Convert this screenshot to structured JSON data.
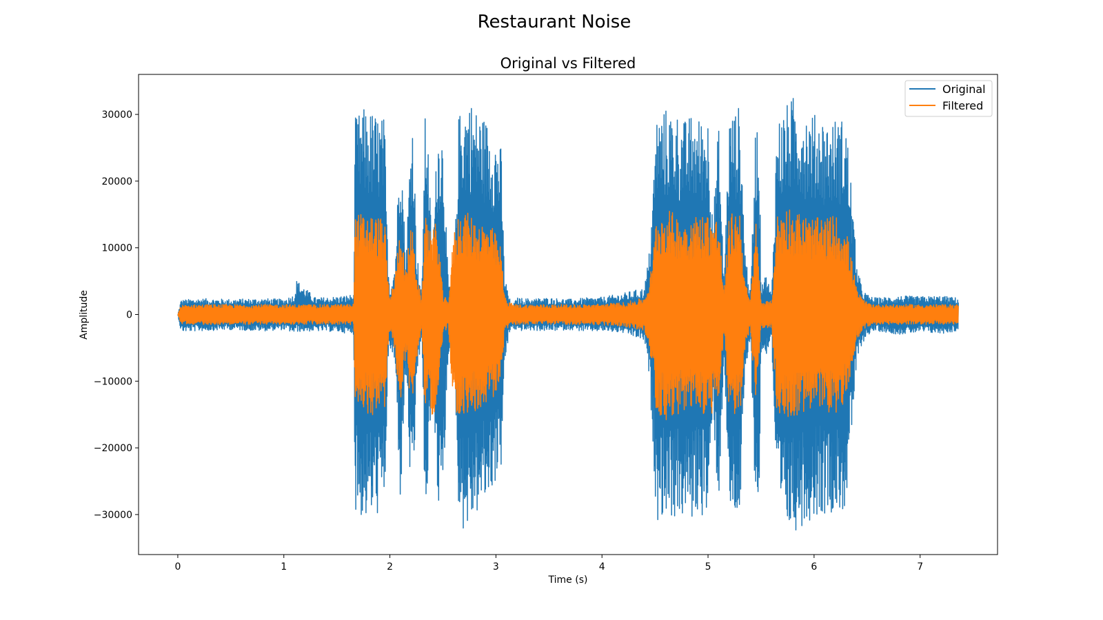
{
  "figure": {
    "suptitle": "Restaurant Noise"
  },
  "chart_data": {
    "type": "line",
    "title": "Original vs Filtered",
    "xlabel": "Time (s)",
    "ylabel": "Amplitude",
    "xlim": [
      -0.37,
      7.73
    ],
    "ylim": [
      -36000,
      36000
    ],
    "xticks": [
      0,
      1,
      2,
      3,
      4,
      5,
      6,
      7
    ],
    "xtick_labels": [
      "0",
      "1",
      "2",
      "3",
      "4",
      "5",
      "6",
      "7"
    ],
    "yticks": [
      -30000,
      -20000,
      -10000,
      0,
      10000,
      20000,
      30000
    ],
    "ytick_labels": [
      "−30000",
      "−20000",
      "−10000",
      "0",
      "10000",
      "20000",
      "30000"
    ],
    "grid": false,
    "legend": {
      "position": "upper right",
      "entries": [
        {
          "label": "Original",
          "color": "#1f77b4"
        },
        {
          "label": "Filtered",
          "color": "#ff7f0e"
        }
      ]
    },
    "series": [
      {
        "name": "Original",
        "color": "#1f77b4",
        "envelope": {
          "x": [
            0.0,
            0.03,
            0.2,
            0.5,
            0.8,
            1.0,
            1.1,
            1.12,
            1.3,
            1.5,
            1.66,
            1.67,
            1.75,
            1.85,
            1.95,
            1.98,
            2.0,
            2.05,
            2.1,
            2.15,
            2.2,
            2.22,
            2.25,
            2.3,
            2.33,
            2.35,
            2.4,
            2.45,
            2.5,
            2.55,
            2.6,
            2.65,
            2.68,
            2.75,
            2.8,
            2.85,
            2.9,
            2.95,
            3.0,
            3.05,
            3.08,
            3.12,
            3.15,
            3.2,
            3.3,
            3.5,
            3.7,
            3.85,
            4.0,
            4.2,
            4.4,
            4.45,
            4.5,
            4.51,
            4.6,
            4.7,
            4.8,
            4.85,
            4.9,
            5.0,
            5.05,
            5.1,
            5.15,
            5.2,
            5.25,
            5.3,
            5.35,
            5.4,
            5.45,
            5.48,
            5.5,
            5.55,
            5.6,
            5.65,
            5.68,
            5.72,
            5.8,
            5.9,
            6.0,
            6.05,
            6.1,
            6.15,
            6.2,
            6.3,
            6.35,
            6.4,
            6.45,
            6.5,
            6.55,
            6.6,
            6.8,
            7.0,
            7.2,
            7.36
          ],
          "max": [
            0,
            2200,
            2400,
            2300,
            2400,
            2300,
            3000,
            5200,
            2500,
            2700,
            3000,
            29500,
            31000,
            30500,
            29500,
            9000,
            4000,
            8000,
            29000,
            8000,
            29000,
            30500,
            10000,
            3000,
            29500,
            30500,
            8000,
            28500,
            27500,
            5000,
            3000,
            30000,
            31500,
            32800,
            31000,
            30500,
            29500,
            28500,
            27000,
            25000,
            6000,
            3000,
            1200,
            2500,
            2400,
            2500,
            2300,
            2500,
            2600,
            3200,
            4000,
            10000,
            25000,
            30000,
            31000,
            30500,
            29000,
            30500,
            29500,
            30000,
            15000,
            29000,
            5000,
            30000,
            30500,
            31500,
            10000,
            3000,
            29500,
            29000,
            5000,
            6000,
            3000,
            29500,
            30000,
            31000,
            32800,
            31500,
            30000,
            30500,
            29500,
            29000,
            29500,
            29500,
            20000,
            8000,
            4000,
            3000,
            2600,
            2500,
            2800,
            2700,
            2800,
            2500
          ],
          "min": [
            0,
            -2600,
            -2500,
            -2300,
            -2500,
            -2300,
            -2800,
            -2600,
            -2500,
            -2600,
            -3000,
            -29500,
            -31000,
            -30500,
            -29500,
            -9000,
            -5000,
            -8000,
            -29000,
            -8000,
            -29000,
            -30500,
            -10000,
            -3500,
            -29500,
            -31000,
            -9000,
            -29000,
            -28500,
            -6000,
            -4000,
            -30000,
            -32500,
            -32000,
            -30500,
            -29500,
            -28500,
            -27000,
            -25000,
            -23000,
            -8000,
            -3500,
            -2000,
            -2500,
            -2400,
            -2500,
            -2300,
            -2600,
            -2500,
            -2800,
            -4000,
            -10000,
            -26000,
            -31000,
            -30000,
            -31000,
            -30500,
            -31000,
            -30000,
            -30500,
            -15000,
            -30000,
            -6000,
            -30500,
            -30500,
            -31000,
            -10000,
            -3500,
            -30500,
            -29500,
            -6000,
            -6000,
            -3500,
            -30000,
            -31500,
            -32500,
            -32800,
            -31500,
            -30500,
            -30000,
            -30000,
            -29500,
            -30000,
            -29500,
            -19000,
            -8000,
            -4500,
            -3200,
            -2600,
            -2500,
            -3000,
            -2700,
            -2900,
            -2500
          ]
        }
      },
      {
        "name": "Filtered",
        "color": "#ff7f0e",
        "envelope": {
          "x": [
            0.0,
            0.03,
            0.2,
            0.5,
            0.8,
            1.0,
            1.3,
            1.5,
            1.66,
            1.67,
            1.75,
            1.85,
            1.95,
            1.98,
            2.0,
            2.05,
            2.1,
            2.15,
            2.2,
            2.25,
            2.3,
            2.33,
            2.4,
            2.45,
            2.5,
            2.55,
            2.6,
            2.65,
            2.68,
            2.75,
            2.85,
            2.95,
            3.0,
            3.05,
            3.08,
            3.12,
            3.2,
            3.5,
            3.85,
            4.0,
            4.2,
            4.4,
            4.45,
            4.5,
            4.51,
            4.6,
            4.7,
            4.8,
            4.9,
            5.0,
            5.1,
            5.15,
            5.2,
            5.3,
            5.35,
            5.4,
            5.45,
            5.5,
            5.55,
            5.6,
            5.65,
            5.68,
            5.75,
            5.8,
            5.9,
            6.0,
            6.1,
            6.2,
            6.3,
            6.35,
            6.4,
            6.45,
            6.5,
            6.6,
            6.8,
            7.0,
            7.2,
            7.36
          ],
          "max": [
            0,
            1400,
            1500,
            1500,
            1500,
            1500,
            1500,
            1500,
            1600,
            15000,
            15300,
            15000,
            14500,
            6000,
            2500,
            6000,
            14500,
            6000,
            14500,
            7000,
            2000,
            14500,
            14000,
            13500,
            3000,
            2000,
            12000,
            15500,
            16000,
            15000,
            14000,
            13500,
            12000,
            10000,
            3000,
            1800,
            1500,
            1500,
            1500,
            1600,
            1800,
            2500,
            5000,
            12000,
            15000,
            16000,
            15000,
            14500,
            15000,
            15300,
            14500,
            3000,
            15000,
            16000,
            5000,
            2000,
            14500,
            2000,
            2000,
            2000,
            15000,
            15500,
            16500,
            16000,
            15000,
            14500,
            14500,
            15000,
            13000,
            9000,
            4000,
            2500,
            1800,
            1500,
            1500,
            1500,
            1500,
            1500
          ],
          "min": [
            0,
            -1400,
            -1500,
            -1500,
            -1500,
            -1500,
            -1500,
            -1500,
            -1600,
            -15000,
            -15300,
            -15000,
            -14500,
            -6000,
            -2500,
            -6000,
            -14500,
            -6000,
            -14500,
            -7000,
            -2000,
            -14500,
            -15000,
            -14500,
            -3000,
            -2000,
            -14000,
            -15500,
            -16000,
            -15000,
            -14000,
            -13500,
            -12000,
            -10000,
            -3000,
            -1800,
            -1500,
            -1500,
            -1500,
            -1600,
            -1800,
            -2500,
            -5000,
            -12000,
            -15000,
            -16000,
            -15000,
            -14500,
            -15000,
            -15300,
            -14500,
            -3000,
            -15000,
            -15500,
            -5000,
            -2000,
            -14500,
            -2000,
            -2000,
            -2000,
            -15000,
            -15500,
            -16000,
            -15500,
            -15000,
            -14500,
            -14500,
            -15000,
            -13000,
            -9000,
            -4000,
            -2500,
            -1800,
            -1500,
            -1500,
            -1500,
            -1500,
            -1500
          ]
        }
      }
    ]
  }
}
